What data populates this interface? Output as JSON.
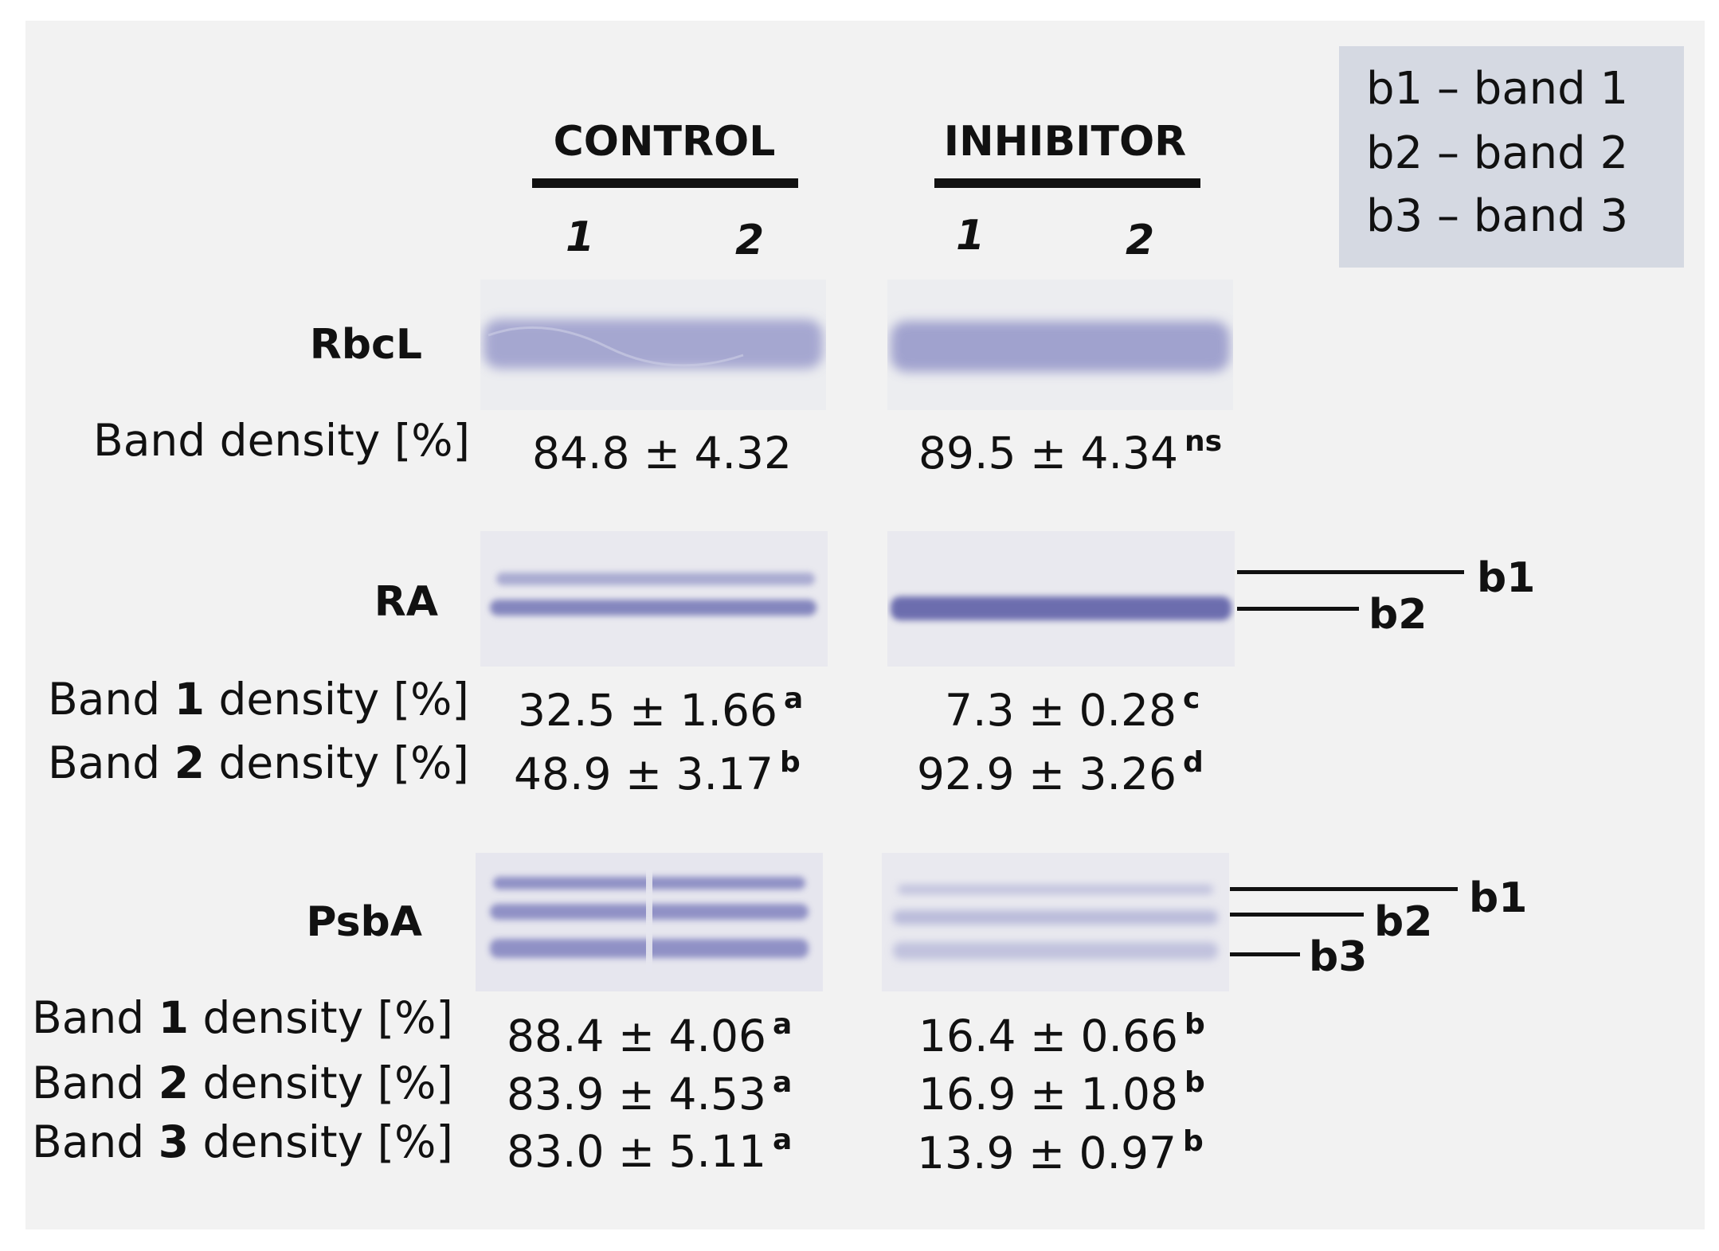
{
  "legend": [
    {
      "text": "b1 – band 1"
    },
    {
      "text": "b2 – band 2"
    },
    {
      "text": "b3 – band 3"
    }
  ],
  "groups": {
    "control": {
      "title": "CONTROL",
      "lanes": [
        "1",
        "2"
      ]
    },
    "inhibitor": {
      "title": "INHIBITOR",
      "lanes": [
        "1",
        "2"
      ]
    }
  },
  "blots": {
    "rbcl": {
      "label": "RbcL",
      "metrics": [
        {
          "prefix": "Band density [%]",
          "num": "",
          "suffix": "",
          "control": "84.8 ± 4.32",
          "control_sig": "",
          "inhibitor": "89.5 ± 4.34",
          "inhibitor_sig": "ns"
        }
      ]
    },
    "ra": {
      "label": "RA",
      "markers": [
        "b1",
        "b2"
      ],
      "metrics": [
        {
          "prefix": "Band ",
          "num": "1",
          "suffix": " density [%]",
          "control": "32.5 ± 1.66",
          "control_sig": "a",
          "inhibitor": "7.3 ± 0.28",
          "inhibitor_sig": "c"
        },
        {
          "prefix": "Band ",
          "num": "2",
          "suffix": " density [%]",
          "control": "48.9 ± 3.17",
          "control_sig": "b",
          "inhibitor": "92.9 ± 3.26",
          "inhibitor_sig": "d"
        }
      ]
    },
    "psba": {
      "label": "PsbA",
      "markers": [
        "b1",
        "b2",
        "b3"
      ],
      "metrics": [
        {
          "prefix": "Band ",
          "num": "1",
          "suffix": " density [%]",
          "control": "88.4 ± 4.06",
          "control_sig": "a",
          "inhibitor": "16.4 ± 0.66",
          "inhibitor_sig": "b"
        },
        {
          "prefix": "Band ",
          "num": "2",
          "suffix": " density [%]",
          "control": "83.9 ± 4.53",
          "control_sig": "a",
          "inhibitor": "16.9 ± 1.08",
          "inhibitor_sig": "b"
        },
        {
          "prefix": "Band ",
          "num": "3",
          "suffix": " density [%]",
          "control": "83.0 ± 5.11",
          "control_sig": "a",
          "inhibitor": "13.9 ± 0.97",
          "inhibitor_sig": "b"
        }
      ]
    }
  },
  "colors": {
    "band": "#7d7fbf",
    "membrane": "#e9e9ee",
    "legend_bg": "#d5d9e2",
    "panel_bg": "#f2f2f2"
  }
}
